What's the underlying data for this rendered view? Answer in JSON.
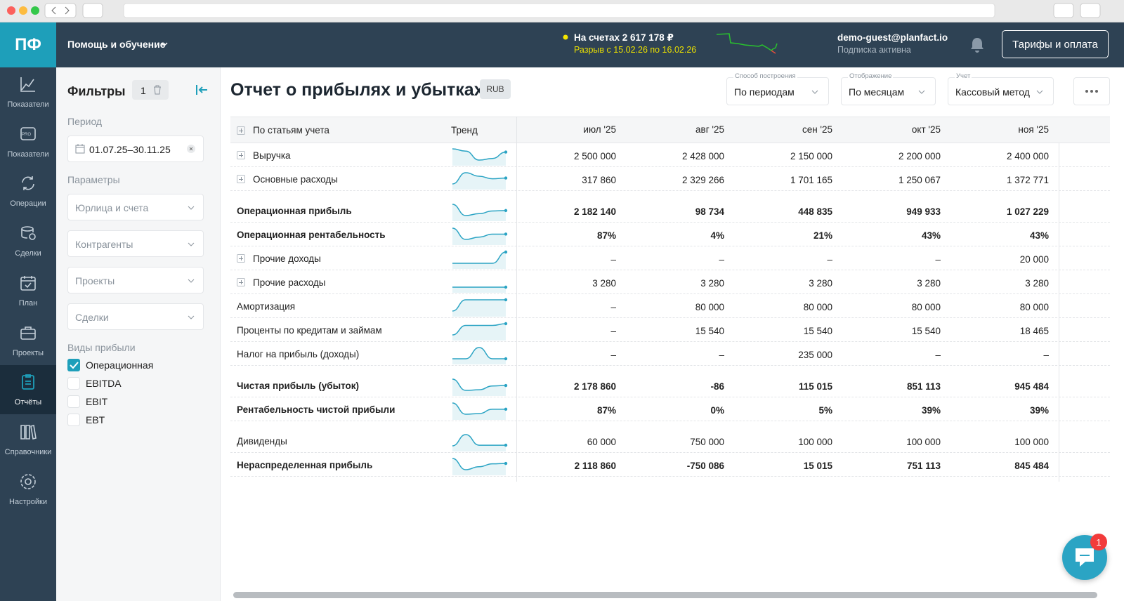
{
  "header": {
    "logo": "ПФ",
    "help_menu": "Помощь и обучение",
    "balance": "На счетах 2 617 178 ₽",
    "cash_gap": "Разрыв с 15.02.26 по 16.02.26",
    "user": "demo-guest@planfact.io",
    "subscription": "Подписка активна",
    "tariffs_button": "Тарифы и оплата"
  },
  "sidebar": {
    "items": [
      {
        "label": "Показатели"
      },
      {
        "label": "Показатели",
        "badge": "PRO"
      },
      {
        "label": "Операции"
      },
      {
        "label": "Сделки"
      },
      {
        "label": "План"
      },
      {
        "label": "Проекты"
      },
      {
        "label": "Отчёты",
        "active": true
      },
      {
        "label": "Справочники"
      },
      {
        "label": "Настройки"
      }
    ]
  },
  "filters": {
    "title": "Фильтры",
    "count": "1",
    "period_label": "Период",
    "period_value": "01.07.25–30.11.25",
    "params_label": "Параметры",
    "dropdowns": [
      "Юрлица и счета",
      "Контрагенты",
      "Проекты",
      "Сделки"
    ],
    "profit_types_label": "Виды прибыли",
    "profit_types": [
      {
        "label": "Операционная",
        "checked": true
      },
      {
        "label": "EBITDA",
        "checked": false
      },
      {
        "label": "EBIT",
        "checked": false
      },
      {
        "label": "EBT",
        "checked": false
      }
    ]
  },
  "report": {
    "title": "Отчет о прибылях и убытках",
    "currency": "RUB",
    "controls": [
      {
        "label": "Способ построения",
        "value": "По периодам"
      },
      {
        "label": "Отображение",
        "value": "По месяцам"
      },
      {
        "label": "Учет",
        "value": "Кассовый метод"
      }
    ],
    "table": {
      "group_header": "По статьям учета",
      "trend_header": "Тренд",
      "columns": [
        "июл '25",
        "авг '25",
        "сен '25",
        "окт '25",
        "ноя '25"
      ],
      "rows": [
        {
          "label": "Выручка",
          "expandable": true,
          "cells": [
            "2 500 000",
            "2 428 000",
            "2 150 000",
            "2 200 000",
            "2 400 000"
          ]
        },
        {
          "label": "Основные расходы",
          "expandable": true,
          "cells": [
            "317 860",
            "2 329 266",
            "1 701 165",
            "1 250 067",
            "1 372 771"
          ]
        },
        {
          "label": "Операционная прибыль",
          "bold": true,
          "cells": [
            "2 182 140",
            "98 734",
            "448 835",
            "949 933",
            "1 027 229"
          ]
        },
        {
          "label": "Операционная рентабельность",
          "bold": true,
          "cells": [
            "87%",
            "4%",
            "21%",
            "43%",
            "43%"
          ]
        },
        {
          "label": "Прочие доходы",
          "expandable": true,
          "cells": [
            "–",
            "–",
            "–",
            "–",
            "20 000"
          ]
        },
        {
          "label": "Прочие расходы",
          "expandable": true,
          "cells": [
            "3 280",
            "3 280",
            "3 280",
            "3 280",
            "3 280"
          ]
        },
        {
          "label": "Амортизация",
          "cells": [
            "–",
            "80 000",
            "80 000",
            "80 000",
            "80 000"
          ]
        },
        {
          "label": "Проценты по кредитам и займам",
          "cells": [
            "–",
            "15 540",
            "15 540",
            "15 540",
            "18 465"
          ]
        },
        {
          "label": "Налог на прибыль (доходы)",
          "cells": [
            "–",
            "–",
            "235 000",
            "–",
            "–"
          ]
        },
        {
          "label": "Чистая прибыль (убыток)",
          "bold": true,
          "cells": [
            "2 178 860",
            "-86",
            "115 015",
            "851 113",
            "945 484"
          ]
        },
        {
          "label": "Рентабельность чистой прибыли",
          "bold": true,
          "cells": [
            "87%",
            "0%",
            "5%",
            "39%",
            "39%"
          ]
        },
        {
          "label": "Дивиденды",
          "cells": [
            "60 000",
            "750 000",
            "100 000",
            "100 000",
            "100 000"
          ]
        },
        {
          "label": "Нераспределенная прибыль",
          "bold": true,
          "cells": [
            "2 118 860",
            "-750 086",
            "15 015",
            "751 113",
            "845 484"
          ]
        }
      ]
    }
  },
  "chat": {
    "badge": "1"
  }
}
